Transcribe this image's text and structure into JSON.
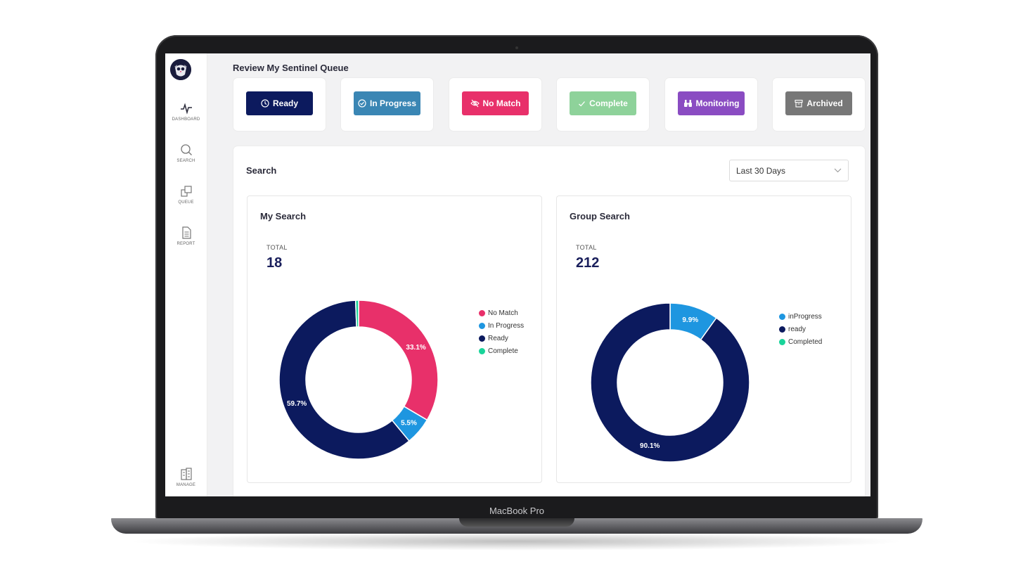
{
  "device": {
    "brand": "MacBook Pro"
  },
  "sidebar": {
    "items": [
      {
        "label": "DASHBOARD",
        "icon": "activity-icon"
      },
      {
        "label": "SEARCH",
        "icon": "search-icon"
      },
      {
        "label": "QUEUE",
        "icon": "queue-icon"
      },
      {
        "label": "REPORT",
        "icon": "report-icon"
      },
      {
        "label": "MANAGE",
        "icon": "building-icon"
      }
    ]
  },
  "header": {
    "title": "Review My Sentinel Queue"
  },
  "statuses": [
    {
      "label": "Ready",
      "color": "#0c1a5e",
      "icon": "clock-icon"
    },
    {
      "label": "In Progress",
      "color": "#3a86b4",
      "icon": "check-circle-icon"
    },
    {
      "label": "No Match",
      "color": "#e8306a",
      "icon": "eye-off-icon"
    },
    {
      "label": "Complete",
      "color": "#8ed29a",
      "icon": "check-icon"
    },
    {
      "label": "Monitoring",
      "color": "#8a4cc2",
      "icon": "binoculars-icon"
    },
    {
      "label": "Archived",
      "color": "#777777",
      "icon": "archive-icon"
    }
  ],
  "search": {
    "title": "Search",
    "date_range": {
      "selected": "Last 30 Days"
    }
  },
  "my_search": {
    "title": "My Search",
    "total_label": "TOTAL",
    "total_value": "18"
  },
  "group_search": {
    "title": "Group Search",
    "total_label": "TOTAL",
    "total_value": "212"
  },
  "chart_data": [
    {
      "type": "pie",
      "title": "My Search",
      "legend_position": "right",
      "series": [
        {
          "name": "No Match",
          "value": 33.1,
          "label": "33.1%",
          "color": "#e8306a"
        },
        {
          "name": "In Progress",
          "value": 5.5,
          "label": "5.5%",
          "color": "#1e96e0"
        },
        {
          "name": "Ready",
          "value": 59.7,
          "label": "59.7%",
          "color": "#0c1a5e"
        },
        {
          "name": "Complete",
          "value": 0.6,
          "label": "",
          "color": "#19d49a"
        }
      ]
    },
    {
      "type": "pie",
      "title": "Group Search",
      "legend_position": "right",
      "series": [
        {
          "name": "inProgress",
          "value": 9.9,
          "label": "9.9%",
          "color": "#1e96e0"
        },
        {
          "name": "ready",
          "value": 90.1,
          "label": "90.1%",
          "color": "#0c1a5e"
        },
        {
          "name": "Completed",
          "value": 0,
          "label": "",
          "color": "#19d49a"
        }
      ]
    }
  ]
}
